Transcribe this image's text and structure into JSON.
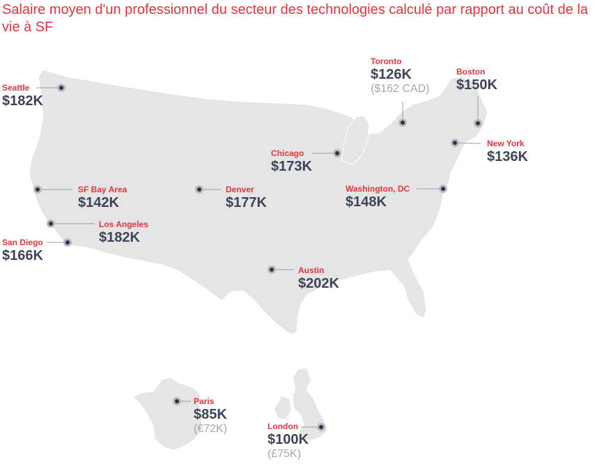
{
  "title": "Salaire moyen d'un professionnel du secteur des technologies calculé par rapport au coût de la vie à SF",
  "colors": {
    "accent": "#e8333c",
    "salary_text": "#3d4459",
    "local_currency_text": "#a3a6ad",
    "land": "#e5e5e5",
    "marker": "#2d3345"
  },
  "cities": [
    {
      "id": "seattle",
      "name": "Seattle",
      "salary": "$182K"
    },
    {
      "id": "toronto",
      "name": "Toronto",
      "salary": "$126K",
      "local": "($162 CAD)"
    },
    {
      "id": "boston",
      "name": "Boston",
      "salary": "$150K"
    },
    {
      "id": "chicago",
      "name": "Chicago",
      "salary": "$173K"
    },
    {
      "id": "new-york",
      "name": "New York",
      "salary": "$136K"
    },
    {
      "id": "sf-bay-area",
      "name": "SF Bay Area",
      "salary": "$142K"
    },
    {
      "id": "denver",
      "name": "Denver",
      "salary": "$177K"
    },
    {
      "id": "washington-dc",
      "name": "Washington, DC",
      "salary": "$148K"
    },
    {
      "id": "los-angeles",
      "name": "Los Angeles",
      "salary": "$182K"
    },
    {
      "id": "san-diego",
      "name": "San Diego",
      "salary": "$166K"
    },
    {
      "id": "austin",
      "name": "Austin",
      "salary": "$202K"
    },
    {
      "id": "paris",
      "name": "Paris",
      "salary": "$85K",
      "local": "(€72K)"
    },
    {
      "id": "london",
      "name": "London",
      "salary": "$100K",
      "local": "(£75K)"
    }
  ]
}
